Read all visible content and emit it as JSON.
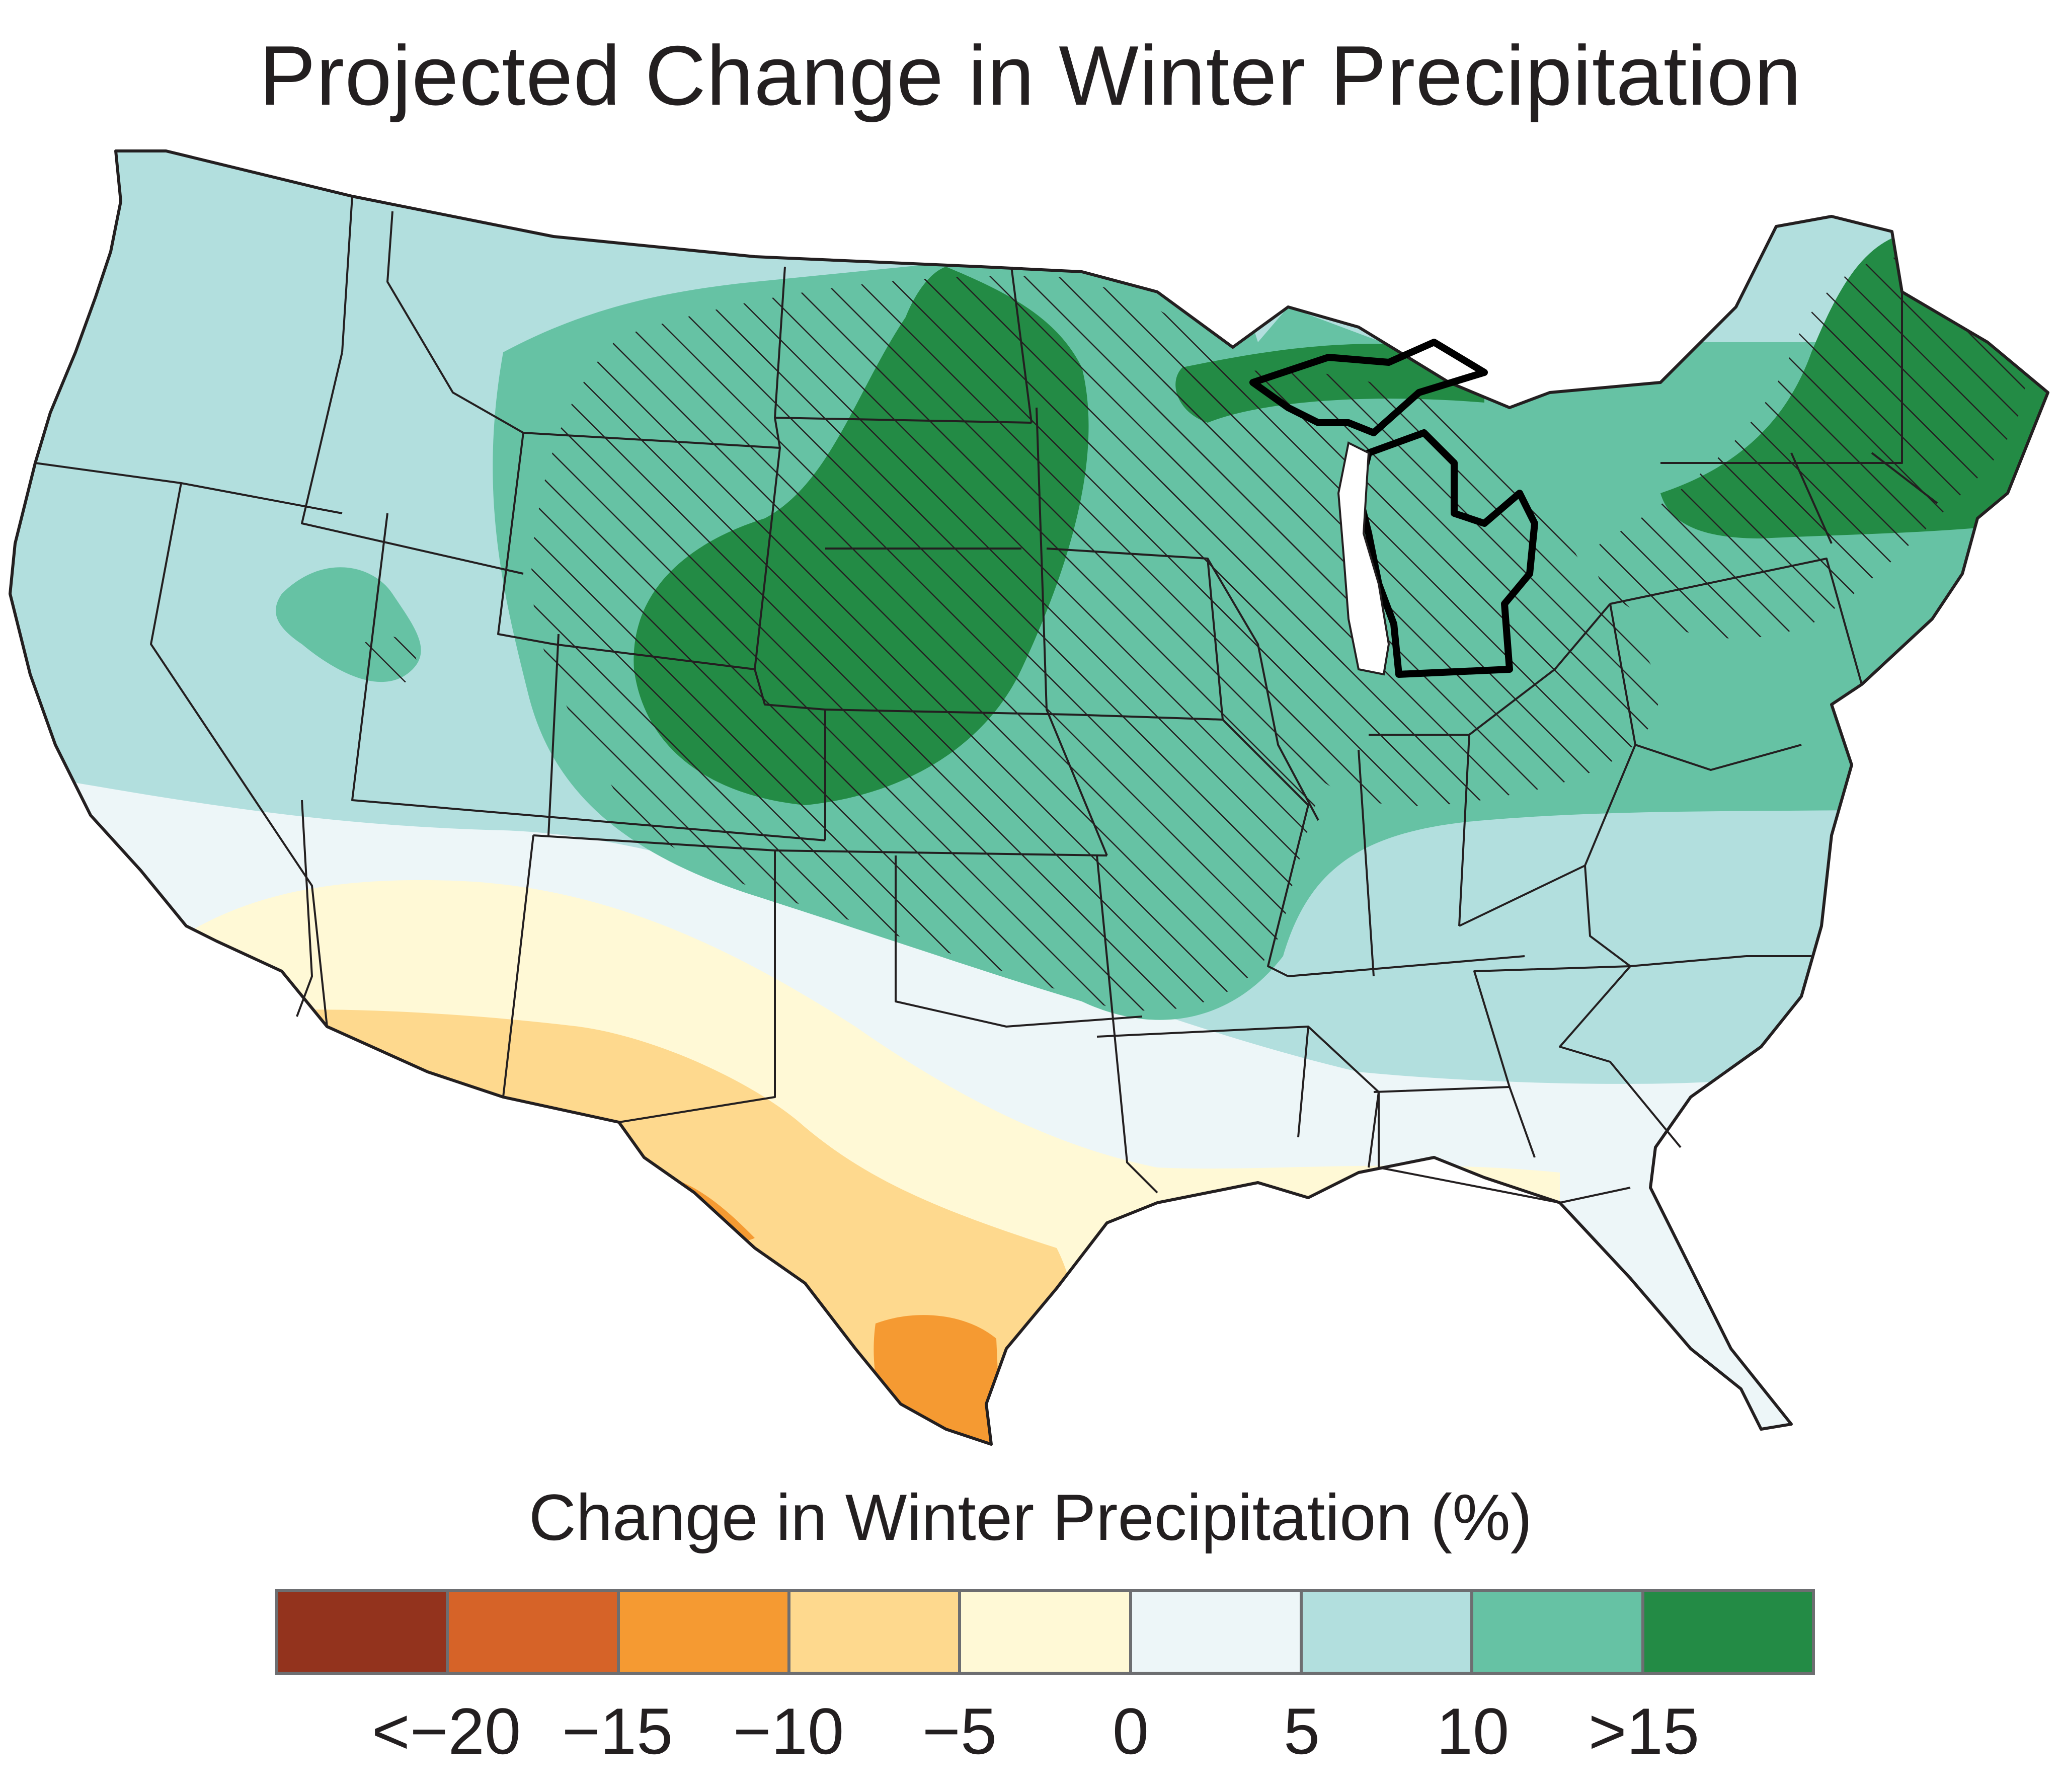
{
  "title": "Projected Change in Winter Precipitation",
  "legend": {
    "title": "Change in Winter Precipitation (%)",
    "bins": [
      {
        "color": "#93331d"
      },
      {
        "color": "#d66328"
      },
      {
        "color": "#f59a32"
      },
      {
        "color": "#fed98e"
      },
      {
        "color": "#fff9d6"
      },
      {
        "color": "#edf6f8"
      },
      {
        "color": "#b2dfde"
      },
      {
        "color": "#66c2a4"
      },
      {
        "color": "#238b45"
      }
    ],
    "tick_labels": [
      "<−20",
      "−15",
      "−10",
      "−5",
      "0",
      "5",
      "10",
      ">15"
    ]
  },
  "map": {
    "region": "Contiguous United States",
    "highlighted_state": "Michigan",
    "hatching_meaning_shown": false
  },
  "colors": {
    "state_border": "#231f20",
    "legend_border": "#6d6e71",
    "hatch": "#231f20"
  }
}
